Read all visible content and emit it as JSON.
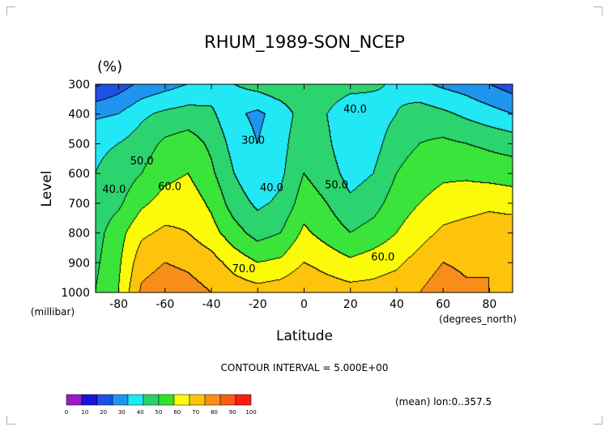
{
  "chart_data": {
    "type": "contour",
    "title": "RHUM_1989-SON_NCEP",
    "units": "(%)",
    "xlabel": "Latitude",
    "xunit": "(degrees_north)",
    "ylabel": "Level",
    "yunit": "(millibar)",
    "x_ticks": [
      "-80",
      "-60",
      "-40",
      "-20",
      "0",
      "20",
      "40",
      "60",
      "80"
    ],
    "x_tick_values": [
      -80,
      -60,
      -40,
      -20,
      0,
      20,
      40,
      60,
      80
    ],
    "y_ticks": [
      "300",
      "400",
      "500",
      "600",
      "700",
      "800",
      "900",
      "1000"
    ],
    "y_tick_values": [
      300,
      400,
      500,
      600,
      700,
      800,
      900,
      1000
    ],
    "xlim": [
      -90,
      90
    ],
    "ylim": [
      1000,
      300
    ],
    "latitudes": [
      -90,
      -80,
      -70,
      -60,
      -50,
      -40,
      -30,
      -20,
      -10,
      0,
      10,
      20,
      30,
      40,
      50,
      60,
      70,
      80,
      90
    ],
    "levels": [
      300,
      400,
      500,
      600,
      700,
      800,
      900,
      1000
    ],
    "values": [
      [
        8,
        15,
        22,
        26,
        30,
        34,
        40,
        44,
        48,
        50,
        48,
        45,
        42,
        38,
        32,
        28,
        25,
        20,
        15
      ],
      [
        28,
        30,
        38,
        42,
        44,
        42,
        32,
        28,
        34,
        45,
        40,
        30,
        34,
        40,
        45,
        42,
        38,
        34,
        30
      ],
      [
        38,
        40,
        45,
        52,
        55,
        48,
        36,
        30,
        36,
        48,
        42,
        32,
        36,
        46,
        50,
        52,
        50,
        48,
        46
      ],
      [
        40,
        44,
        50,
        57,
        60,
        52,
        40,
        32,
        38,
        50,
        45,
        36,
        40,
        50,
        55,
        58,
        58,
        56,
        55
      ],
      [
        44,
        48,
        58,
        64,
        66,
        58,
        45,
        38,
        42,
        55,
        50,
        42,
        46,
        55,
        60,
        64,
        66,
        68,
        66
      ],
      [
        46,
        56,
        68,
        72,
        70,
        64,
        54,
        46,
        50,
        62,
        56,
        50,
        54,
        60,
        66,
        72,
        74,
        75,
        76
      ],
      [
        48,
        58,
        76,
        80,
        78,
        74,
        66,
        60,
        62,
        70,
        66,
        62,
        65,
        68,
        74,
        80,
        78,
        80,
        76
      ],
      [
        50,
        60,
        82,
        86,
        84,
        80,
        76,
        74,
        76,
        80,
        76,
        74,
        74,
        76,
        80,
        86,
        82,
        80,
        78
      ]
    ],
    "contour_labels": [
      {
        "text": "30.0",
        "lat": -22,
        "lev": 500
      },
      {
        "text": "40.0",
        "lat": 22,
        "lev": 395
      },
      {
        "text": "40.0",
        "lat": -82,
        "lev": 665
      },
      {
        "text": "50.0",
        "lat": -70,
        "lev": 570
      },
      {
        "text": "60.0",
        "lat": -58,
        "lev": 655
      },
      {
        "text": "40.0",
        "lat": -14,
        "lev": 660
      },
      {
        "text": "50.0",
        "lat": 14,
        "lev": 650
      },
      {
        "text": "60.0",
        "lat": 34,
        "lev": 893
      },
      {
        "text": "70.0",
        "lat": -26,
        "lev": 932
      }
    ],
    "colorbar": {
      "levels": [
        "0",
        "10",
        "20",
        "30",
        "40",
        "50",
        "60",
        "70",
        "80",
        "90",
        "100"
      ],
      "colors": [
        "#9a1ac7",
        "#1a12d8",
        "#1e52e6",
        "#1f95f0",
        "#1ee8f5",
        "#27d36b",
        "#33df2e",
        "#fafa0a",
        "#fec40c",
        "#f9901a",
        "#fa5a16",
        "#f81e12"
      ]
    },
    "bin_colors": [
      "#a020a0",
      "#1b12d8",
      "#1e52e6",
      "#1f95f0",
      "#22e8f5",
      "#2bd46e",
      "#3ae43a",
      "#fafa0a",
      "#fec40c",
      "#f88e1a",
      "#fa5c16",
      "#f81e12"
    ]
  },
  "footer": {
    "contour_interval": "CONTOUR INTERVAL = 5.000E+00",
    "mean_note": "(mean) lon:0..357.5"
  }
}
